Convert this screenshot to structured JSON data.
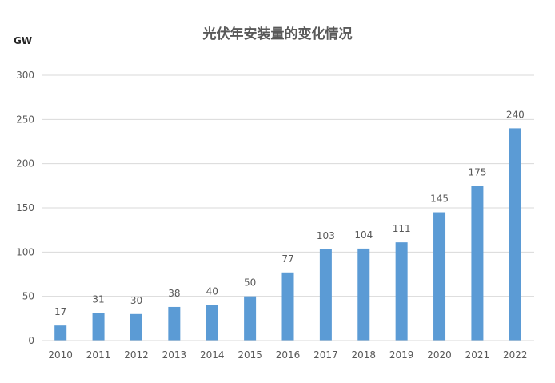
{
  "chart_data": {
    "type": "bar",
    "title": "光伏年安装量的变化情况",
    "ylabel": "GW",
    "xlabel": "",
    "categories": [
      "2010",
      "2011",
      "2012",
      "2013",
      "2014",
      "2015",
      "2016",
      "2017",
      "2018",
      "2019",
      "2020",
      "2021",
      "2022"
    ],
    "values": [
      17,
      31,
      30,
      38,
      40,
      50,
      77,
      103,
      104,
      111,
      145,
      175,
      240
    ],
    "ylim": [
      0,
      300
    ],
    "yticks": [
      "0",
      "50",
      "100",
      "150",
      "200",
      "250",
      "300"
    ],
    "grid": true,
    "legend": "none",
    "colors": {
      "bar": "#5B9BD5",
      "grid": "#D9D9D9",
      "text": "#595959"
    }
  }
}
